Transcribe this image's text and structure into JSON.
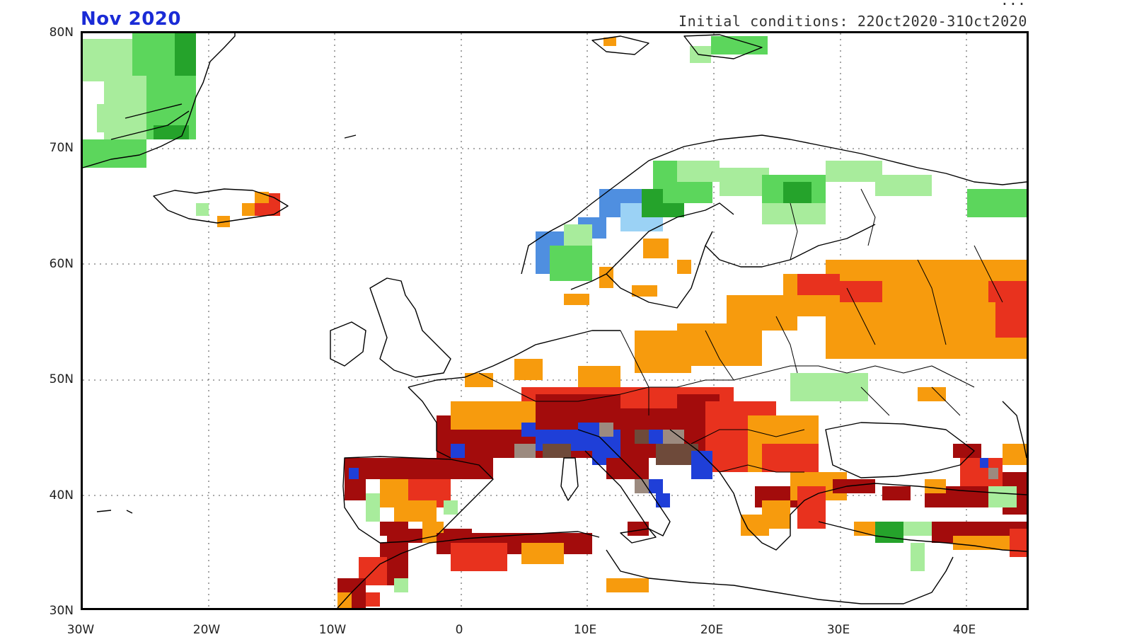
{
  "header": {
    "month_label": "Nov 2020",
    "partial_text": "...",
    "initial_conditions": "Initial conditions: 22Oct2020-31Oct2020"
  },
  "axes": {
    "lat_labels": [
      "80N",
      "70N",
      "60N",
      "50N",
      "40N",
      "30N"
    ],
    "lon_labels": [
      "30W",
      "20W",
      "10W",
      "0",
      "10E",
      "20E",
      "30E",
      "40E"
    ]
  },
  "legend_colors": {
    "dark_red": "#a30c0c",
    "red": "#e8321e",
    "orange": "#f79b0d",
    "brown": "#6e4a3a",
    "taupe": "#9c8a7f",
    "blue": "#1f3fd8",
    "mid_blue": "#4f8fe0",
    "light_blue": "#9bd2f5",
    "light_green": "#a8ec9c",
    "green": "#5cd65c",
    "dark_green": "#25a32b"
  }
}
